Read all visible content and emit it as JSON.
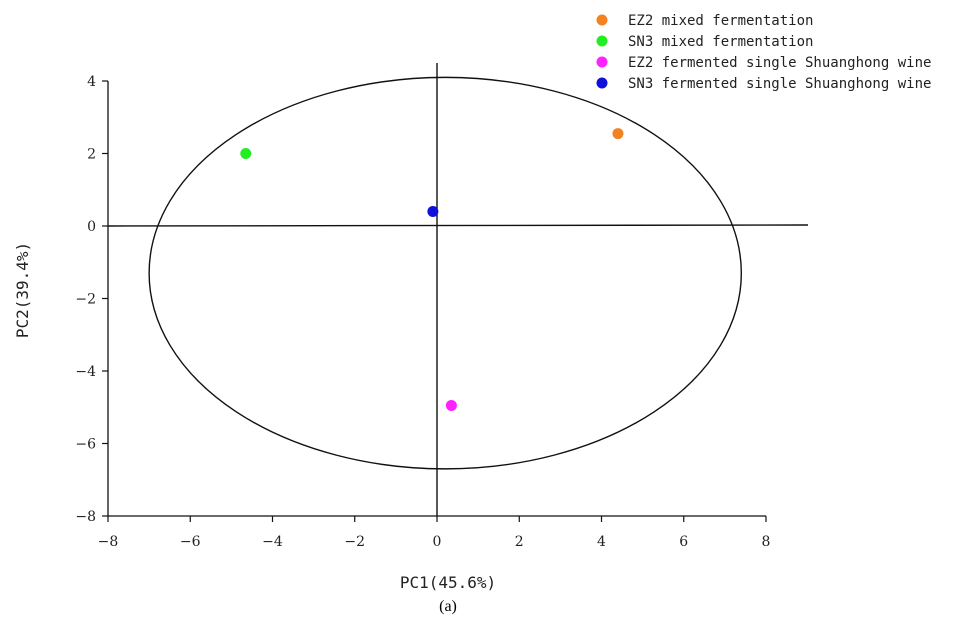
{
  "chart_data": {
    "type": "scatter",
    "title": "",
    "xlabel": "PC1(45.6%)",
    "ylabel": "PC2(39.4%)",
    "caption": "(a)",
    "xlim": [
      -8,
      8
    ],
    "ylim": [
      -8,
      4
    ],
    "xticks": [
      -8,
      -6,
      -4,
      -2,
      0,
      2,
      4,
      6,
      8
    ],
    "yticks": [
      -8,
      -6,
      -4,
      -2,
      0,
      2,
      4
    ],
    "grid": false,
    "legend_position": "top-right",
    "series": [
      {
        "name": "EZ2 mixed fermentation",
        "color": "#f58220",
        "x": [
          4.4
        ],
        "y": [
          2.55
        ]
      },
      {
        "name": "SN3 mixed fermentation",
        "color": "#22ee22",
        "x": [
          -4.65
        ],
        "y": [
          2.0
        ]
      },
      {
        "name": "EZ2 fermented single Shuanghong wine",
        "color": "#ff22ff",
        "x": [
          0.35
        ],
        "y": [
          -4.95
        ]
      },
      {
        "name": "SN3 fermented single Shuanghong wine",
        "color": "#1010dd",
        "x": [
          -0.1
        ],
        "y": [
          0.4
        ]
      }
    ],
    "confidence_ellipse": {
      "cx": 0.2,
      "cy": -1.3,
      "rx": 7.2,
      "ry": 5.4
    },
    "reference_lines": {
      "x": 0,
      "y": 0
    }
  }
}
